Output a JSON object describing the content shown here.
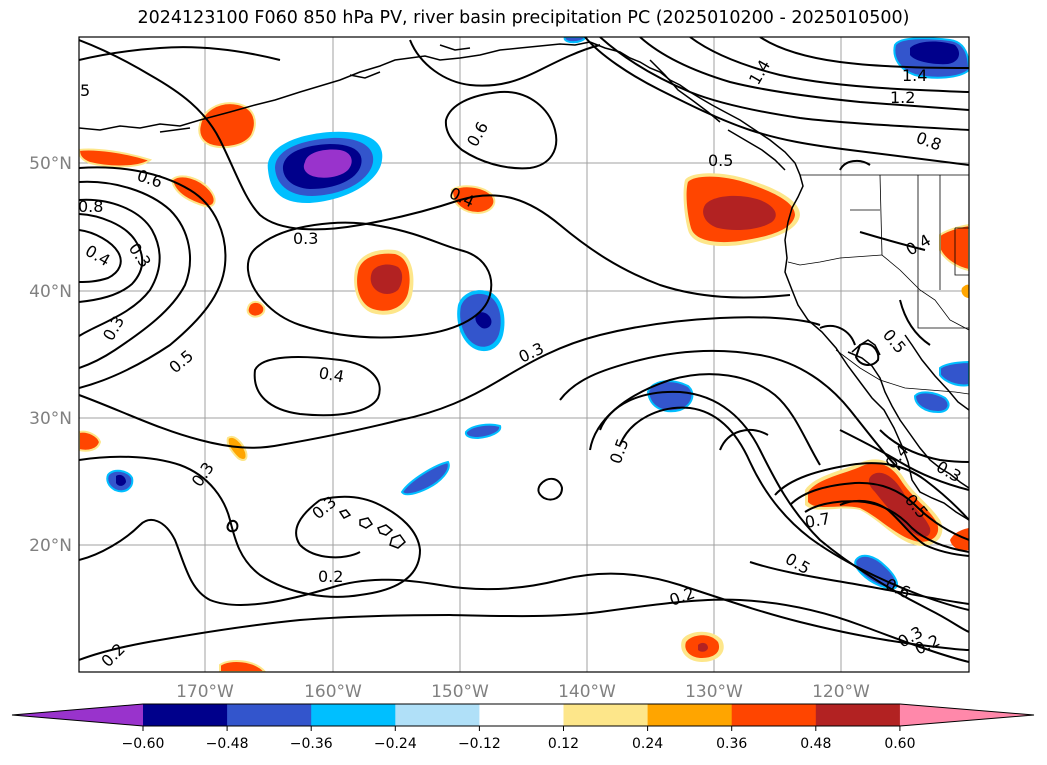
{
  "title": "2024123100 F060 850 hPa PV, river basin precipitation PC (2025010200 - 2025010500)",
  "map": {
    "lon_labels": [
      "170°W",
      "160°W",
      "150°W",
      "140°W",
      "130°W",
      "120°W"
    ],
    "lat_labels": [
      "50°N",
      "40°N",
      "30°N",
      "20°N"
    ],
    "contour_labels": [
      "5",
      "0.6",
      "0.4",
      "0.5",
      "1.4",
      "1.4",
      "1.2",
      "0.8",
      "0.6",
      "0.8",
      "0.4",
      "0.3",
      "0.4",
      "0.3",
      "0.3",
      "0.5",
      "0.4",
      "0.3",
      "0.5",
      "0.3",
      "0.3",
      "0.2",
      "0.2",
      "0.2",
      "0.5",
      "0.7",
      "0.5",
      "0.6",
      "0.3",
      "0.2",
      "0.4",
      "0.3",
      "0.5"
    ]
  },
  "colorbar": {
    "colors": [
      "#9933cc",
      "#00008b",
      "#3355cc",
      "#00bfff",
      "#b0e0f8",
      "#ffffff",
      "#fde68a",
      "#ffa500",
      "#ff4500",
      "#b22222",
      "#ff88aa"
    ],
    "ticks": [
      "−0.60",
      "−0.48",
      "−0.36",
      "−0.24",
      "−0.12",
      "0.12",
      "0.24",
      "0.36",
      "0.48",
      "0.60"
    ]
  }
}
